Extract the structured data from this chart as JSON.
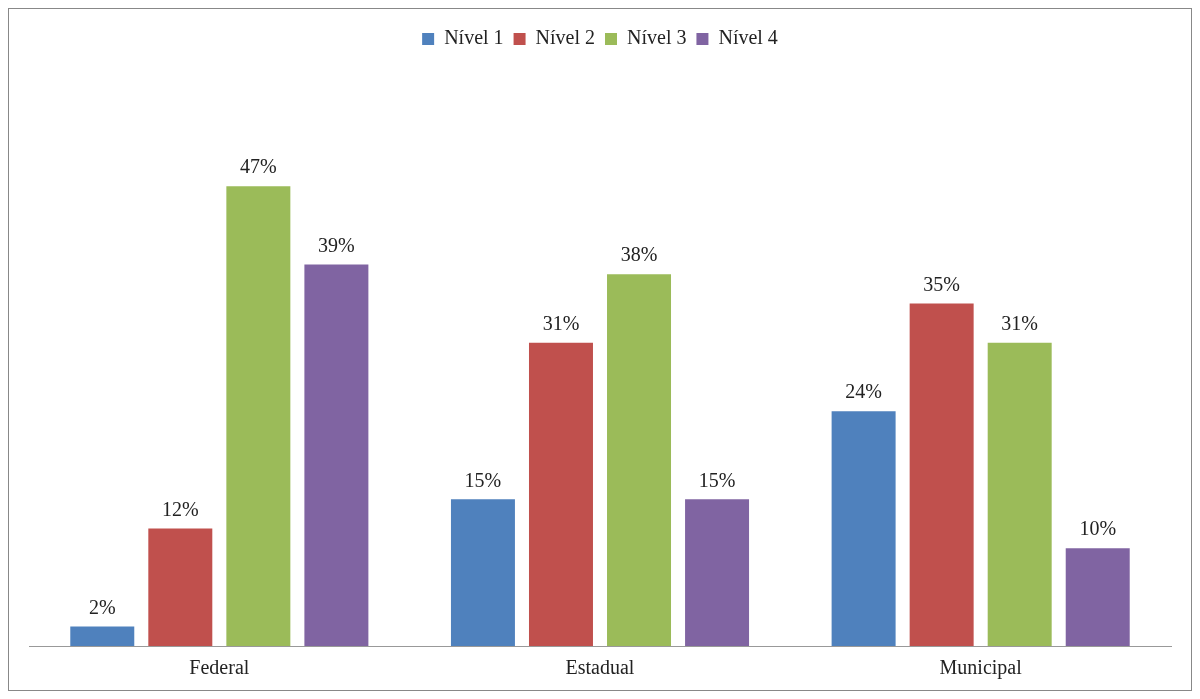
{
  "chart_data": {
    "type": "bar",
    "categories": [
      "Federal",
      "Estadual",
      "Municipal"
    ],
    "series": [
      {
        "name": "Nível 1",
        "color": "#4f81bd",
        "values": [
          2,
          15,
          24
        ],
        "value_labels": [
          "2%",
          "15%",
          "24%"
        ]
      },
      {
        "name": "Nível 2",
        "color": "#c0504d",
        "values": [
          12,
          31,
          35
        ],
        "value_labels": [
          "12%",
          "31%",
          "35%"
        ]
      },
      {
        "name": "Nível 3",
        "color": "#9bbb59",
        "values": [
          47,
          38,
          31
        ],
        "value_labels": [
          "47%",
          "38%",
          "31%"
        ]
      },
      {
        "name": "Nível 4",
        "color": "#8064a2",
        "values": [
          39,
          15,
          10
        ],
        "value_labels": [
          "39%",
          "15%",
          "10%"
        ]
      }
    ],
    "legend": "top",
    "grid": false
  }
}
